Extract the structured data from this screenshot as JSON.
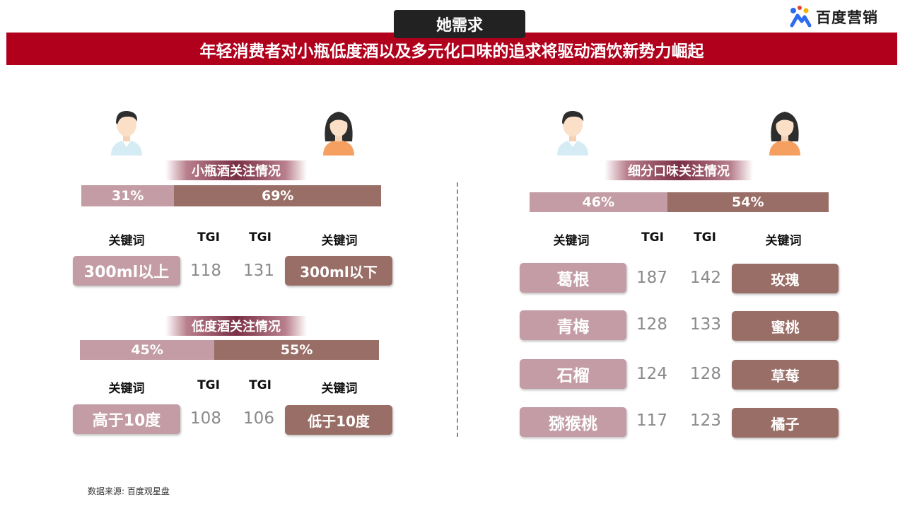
{
  "header": {
    "tag": "她需求",
    "banner": "年轻消费者对小瓶低度酒以及多元化口味的追求将驱动酒饮新势力崛起",
    "logo_text": "百度营销"
  },
  "colors": {
    "banner_red": "#b0001c",
    "pink": "#c39ca5",
    "brown": "#996e66"
  },
  "left": {
    "small_bottle": {
      "title": "小瓶酒关注情况",
      "male_pct": "31%",
      "female_pct": "69%",
      "male_share": 0.31,
      "headers": [
        "关键词",
        "TGI",
        "TGI",
        "关键词"
      ],
      "row": {
        "male_kw": "300ml以上",
        "male_tgi": "118",
        "female_tgi": "131",
        "female_kw": "300ml以下"
      }
    },
    "low_alcohol": {
      "title": "低度酒关注情况",
      "male_pct": "45%",
      "female_pct": "55%",
      "male_share": 0.45,
      "headers": [
        "关键词",
        "TGI",
        "TGI",
        "关键词"
      ],
      "row": {
        "male_kw": "高于10度",
        "male_tgi": "108",
        "female_tgi": "106",
        "female_kw": "低于10度"
      }
    }
  },
  "right": {
    "title": "细分口味关注情况",
    "male_pct": "46%",
    "female_pct": "54%",
    "male_share": 0.46,
    "headers": [
      "关键词",
      "TGI",
      "TGI",
      "关键词"
    ],
    "rows": [
      {
        "male_kw": "葛根",
        "male_tgi": "187",
        "female_tgi": "142",
        "female_kw": "玫瑰"
      },
      {
        "male_kw": "青梅",
        "male_tgi": "128",
        "female_tgi": "133",
        "female_kw": "蜜桃"
      },
      {
        "male_kw": "石榴",
        "male_tgi": "124",
        "female_tgi": "128",
        "female_kw": "草莓"
      },
      {
        "male_kw": "猕猴桃",
        "male_tgi": "117",
        "female_tgi": "123",
        "female_kw": "橘子"
      }
    ]
  },
  "icons": {
    "male": "male-avatar-icon",
    "female": "female-avatar-icon",
    "logo": "baidu-paw-logo-icon"
  },
  "footer": {
    "source": "数据来源: 百度观星盘"
  }
}
